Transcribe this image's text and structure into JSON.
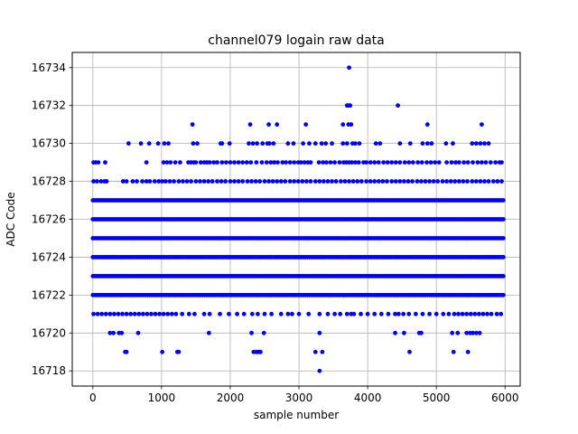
{
  "chart_data": {
    "type": "scatter",
    "title": "channel079 logain raw data",
    "xlabel": "sample number",
    "ylabel": "ADC Code",
    "xlim": [
      -300,
      6220
    ],
    "ylim": [
      16717.2,
      16734.8
    ],
    "xticks": [
      0,
      1000,
      2000,
      3000,
      4000,
      5000,
      6000
    ],
    "yticks": [
      16718,
      16720,
      16722,
      16724,
      16726,
      16728,
      16730,
      16732,
      16734
    ],
    "grid": true,
    "marker_color": "#0000ff",
    "n_samples": 6000,
    "dense_levels": [
      16722,
      16723,
      16724,
      16725,
      16726,
      16727
    ],
    "sparse_points": [
      {
        "y": 16734,
        "x": [
          3730
        ]
      },
      {
        "y": 16732,
        "x": [
          3700,
          3720,
          3745,
          4440
        ]
      },
      {
        "y": 16731,
        "x": [
          1450,
          2290,
          2560,
          2680,
          3100,
          3640,
          3720,
          3760,
          4870,
          5660
        ]
      },
      {
        "y": 16730,
        "x": [
          520,
          700,
          820,
          950,
          1040,
          1100,
          1460,
          1520,
          1860,
          1880,
          1990,
          2270,
          2330,
          2390,
          2470,
          2540,
          2570,
          2630,
          2840,
          2920,
          3060,
          3150,
          3240,
          3330,
          3390,
          3480,
          3640,
          3700,
          3780,
          3820,
          3880,
          4120,
          4180,
          4470,
          4620,
          4800,
          4870,
          4930,
          5140,
          5240,
          5520,
          5580,
          5640,
          5700,
          5760
        ]
      },
      {
        "y": 16729,
        "x": [
          10,
          40,
          80,
          180,
          780,
          1030,
          1080,
          1130,
          1200,
          1270,
          1390,
          1430,
          1470,
          1500,
          1570,
          1620,
          1660,
          1700,
          1760,
          1810,
          1880,
          1940,
          2000,
          2060,
          2120,
          2180,
          2240,
          2300,
          2380,
          2460,
          2530,
          2590,
          2640,
          2690,
          2760,
          2810,
          2870,
          2930,
          2990,
          3030,
          3080,
          3130,
          3170,
          3290,
          3350,
          3400,
          3460,
          3520,
          3590,
          3650,
          3690,
          3730,
          3770,
          3820,
          3870,
          3940,
          3980,
          4040,
          4100,
          4160,
          4230,
          4290,
          4350,
          4410,
          4470,
          4540,
          4600,
          4660,
          4730,
          4790,
          4860,
          4920,
          4980,
          5040,
          5150,
          5220,
          5280,
          5330,
          5400,
          5460,
          5530,
          5600,
          5660,
          5720,
          5790,
          5860,
          5920,
          5950
        ]
      },
      {
        "y": 16728,
        "x": [
          10,
          60,
          120,
          170,
          200,
          440,
          490,
          580,
          640,
          720,
          780,
          830,
          900,
          960,
          1010,
          1060,
          1120,
          1180,
          1250,
          1310,
          1370,
          1430,
          1500,
          1560,
          1620,
          1680,
          1740,
          1810,
          1870,
          1930,
          2000,
          2060,
          2120,
          2180,
          2250,
          2310,
          2370,
          2430,
          2500,
          2560,
          2620,
          2680,
          2740,
          2800,
          2870,
          2930,
          2990,
          3050,
          3110,
          3170,
          3240,
          3300,
          3360,
          3420,
          3480,
          3540,
          3610,
          3670,
          3730,
          3790,
          3850,
          3910,
          3980,
          4040,
          4100,
          4160,
          4220,
          4280,
          4350,
          4410,
          4470,
          4530,
          4590,
          4650,
          4720,
          4780,
          4840,
          4900,
          4960,
          5020,
          5090,
          5150,
          5210,
          5270,
          5330,
          5390,
          5450,
          5520,
          5580,
          5640,
          5700,
          5760,
          5830,
          5890,
          5950
        ]
      },
      {
        "y": 16721,
        "x": [
          10,
          70,
          130,
          190,
          250,
          310,
          370,
          430,
          490,
          550,
          610,
          670,
          730,
          790,
          850,
          910,
          970,
          1030,
          1090,
          1150,
          1210,
          1300,
          1400,
          1480,
          1620,
          1700,
          1850,
          1980,
          2100,
          2200,
          2320,
          2400,
          2500,
          2600,
          2740,
          2840,
          2900,
          3000,
          3140,
          3300,
          3420,
          3520,
          3600,
          3700,
          3760,
          3800,
          3900,
          4000,
          4100,
          4200,
          4300,
          4400,
          4450,
          4520,
          4600,
          4700,
          4800,
          4900,
          5000,
          5100,
          5180,
          5260,
          5320,
          5380,
          5440,
          5500,
          5560,
          5620,
          5680,
          5740,
          5800,
          5880,
          5940
        ]
      },
      {
        "y": 16720,
        "x": [
          250,
          300,
          380,
          420,
          660,
          1690,
          2310,
          2490,
          3300,
          4400,
          4530,
          4750,
          4780,
          5230,
          5310,
          5440,
          5490,
          5530,
          5580,
          5630
        ]
      },
      {
        "y": 16719,
        "x": [
          470,
          490,
          1010,
          1230,
          1250,
          2340,
          2380,
          2400,
          2420,
          2440,
          3240,
          3340,
          4610,
          5250,
          5460
        ]
      },
      {
        "y": 16718,
        "x": [
          3300
        ]
      }
    ]
  }
}
